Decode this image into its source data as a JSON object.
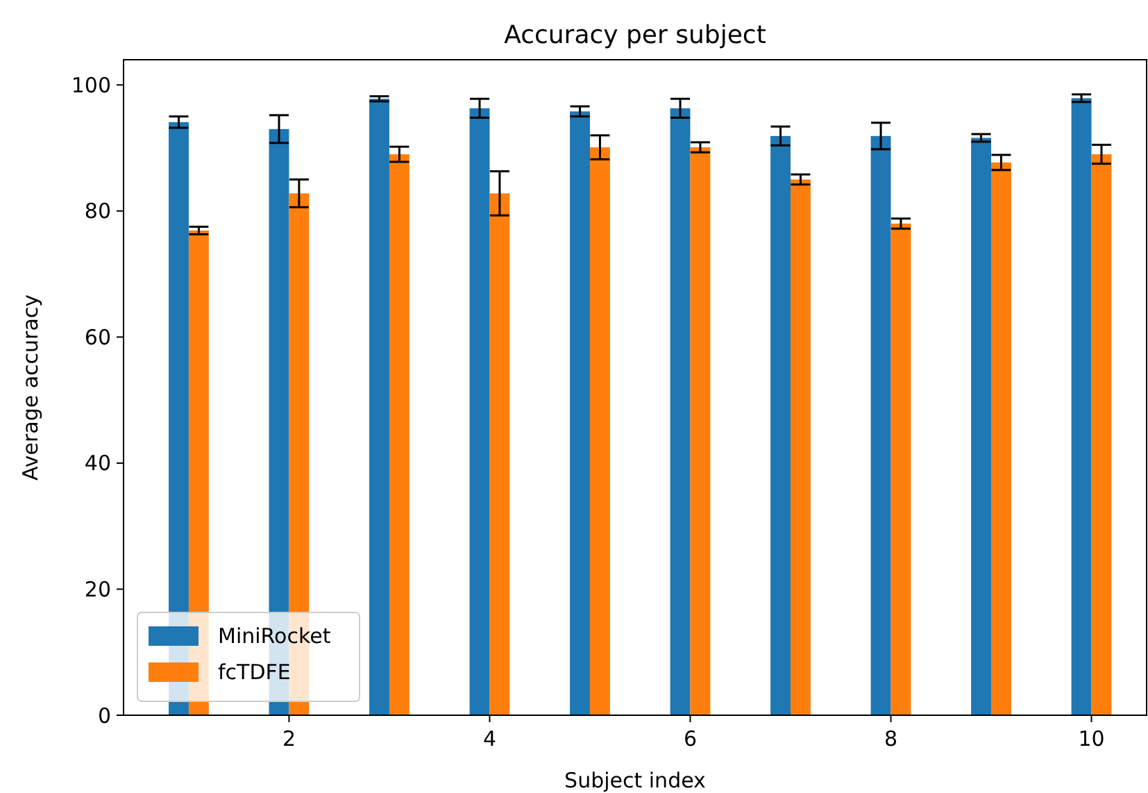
{
  "chart_data": {
    "type": "bar",
    "title": "Accuracy per subject",
    "xlabel": "Subject index",
    "ylabel": "Average accuracy",
    "x": [
      1,
      2,
      3,
      4,
      5,
      6,
      7,
      8,
      9,
      10
    ],
    "xlim": [
      0.35,
      10.55
    ],
    "xticks": [
      2,
      4,
      6,
      8,
      10
    ],
    "ylim": [
      0,
      104
    ],
    "yticks": [
      0,
      20,
      40,
      60,
      80,
      100
    ],
    "series": [
      {
        "name": "MiniRocket",
        "color": "#1f77b4",
        "values": [
          94.1,
          93.0,
          97.8,
          96.3,
          95.8,
          96.3,
          91.9,
          91.9,
          91.6,
          97.9
        ],
        "errors": [
          0.9,
          2.2,
          0.4,
          1.5,
          0.8,
          1.5,
          1.5,
          2.1,
          0.6,
          0.6
        ]
      },
      {
        "name": "fcTDFE",
        "color": "#ff7f0e",
        "values": [
          76.9,
          82.8,
          89.0,
          82.8,
          90.1,
          90.1,
          85.0,
          78.0,
          87.7,
          89.0
        ],
        "errors": [
          0.6,
          2.2,
          1.2,
          3.5,
          1.9,
          0.8,
          0.8,
          0.8,
          1.2,
          1.5
        ]
      }
    ],
    "legend": "bottom left",
    "grid": false
  }
}
